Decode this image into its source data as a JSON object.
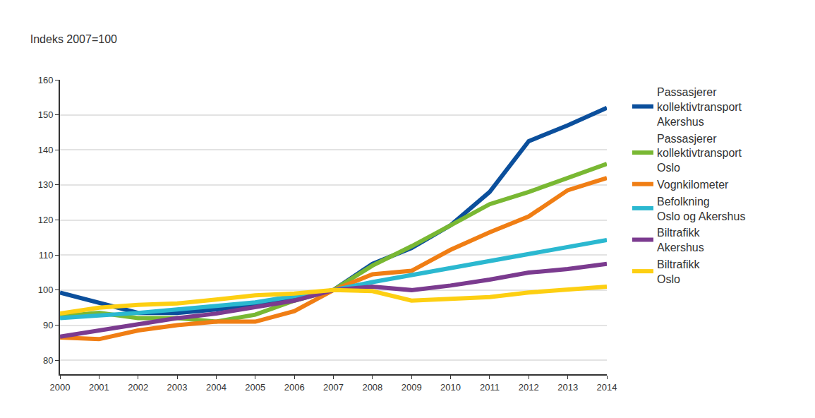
{
  "chart_data": {
    "type": "line",
    "title": "Indeks 2007=100",
    "categories": [
      "2000",
      "2001",
      "2002",
      "2003",
      "2004",
      "2005",
      "2006",
      "2007",
      "2008",
      "2009",
      "2010",
      "2011",
      "2012",
      "2013",
      "2014"
    ],
    "series": [
      {
        "name": "Passasjerer\nkollektivtransport\nAkershus",
        "color": "#0b4f9c",
        "values": [
          99.3,
          96.5,
          93.5,
          93.5,
          94.5,
          96,
          98,
          100,
          107.5,
          112,
          118.5,
          128,
          142.5,
          147,
          152
        ]
      },
      {
        "name": "Passasjerer\nkollektivtransport\nOslo",
        "color": "#79b833",
        "values": [
          92.5,
          93.5,
          92,
          92,
          91,
          93,
          97,
          100,
          107,
          112.5,
          118.5,
          124.5,
          128,
          132,
          136
        ]
      },
      {
        "name": "Vognkilometer",
        "color": "#f07e14",
        "values": [
          86.5,
          86,
          88.5,
          90,
          91,
          91,
          94,
          100,
          104.5,
          105.5,
          111.5,
          116.5,
          121,
          128.5,
          132
        ]
      },
      {
        "name": "Befolkning\nOslo og Akershus",
        "color": "#2bb8d0",
        "values": [
          92,
          92.7,
          93.5,
          94.5,
          95.5,
          96.5,
          98.3,
          100,
          102.3,
          104.3,
          106.5,
          108.5,
          110.5,
          112.3,
          114.3
        ]
      },
      {
        "name": "Biltrafikk\nAkershus",
        "color": "#7b3b8f",
        "values": [
          86.7,
          88.5,
          90.5,
          92,
          93.3,
          95.2,
          97,
          100,
          101,
          100,
          101.3,
          103,
          105,
          106,
          107.5
        ]
      },
      {
        "name": "Biltrafikk\nOslo",
        "color": "#fdcf12",
        "values": [
          93.3,
          95,
          95.8,
          96.2,
          97.3,
          98.5,
          99,
          100,
          99.7,
          97,
          97.5,
          98,
          99.3,
          100,
          101
        ]
      }
    ],
    "ylim": [
      76,
      160
    ],
    "yticks": [
      80,
      90,
      100,
      110,
      120,
      130,
      140,
      150,
      160
    ],
    "grid": true,
    "legend": "right"
  }
}
